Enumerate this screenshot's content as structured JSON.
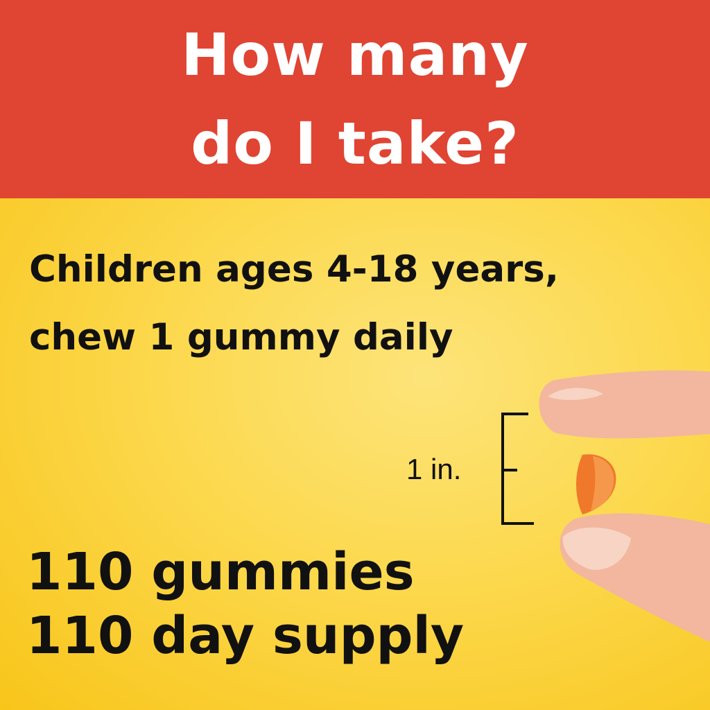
{
  "header": {
    "title_line1": "How many",
    "title_line2": "do I take?",
    "color": "#e04433"
  },
  "directions": {
    "line1": "Children ages 4-18 years,",
    "line2": "chew 1 gummy daily"
  },
  "size": {
    "label": "1 in."
  },
  "supply": {
    "line1": "110 gummies",
    "line2": "110 day supply"
  },
  "colors": {
    "background": "#fcd84c",
    "gummy": "#f0782a"
  }
}
